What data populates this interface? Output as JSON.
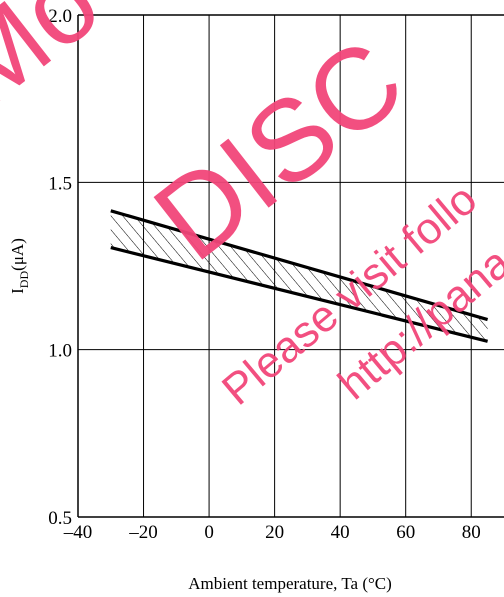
{
  "chart_data": {
    "type": "area",
    "title": "",
    "xlabel": "Ambient temperature, Ta (°C)",
    "ylabel_main": "I",
    "ylabel_sub": "DD",
    "ylabel_unit": "(μA)",
    "xlim": [
      -40,
      90
    ],
    "ylim": [
      0.5,
      2.0
    ],
    "x_ticks": [
      -40,
      -20,
      0,
      20,
      40,
      60,
      80
    ],
    "x_tick_labels": [
      "–40",
      "–20",
      "0",
      "20",
      "40",
      "60",
      "80"
    ],
    "y_ticks": [
      0.5,
      1.0,
      1.5,
      2.0
    ],
    "y_tick_labels": [
      "0.5",
      "1.0",
      "1.5",
      "2.0"
    ],
    "grid": true,
    "series": [
      {
        "x": [
          -30,
          85
        ],
        "y": [
          1.415,
          1.09
        ]
      },
      {
        "x": [
          -30,
          85
        ],
        "y": [
          1.305,
          1.025
        ]
      }
    ],
    "band_color": "#000000",
    "line_color": "#000000"
  },
  "watermark": {
    "texts": [
      "Mo",
      "DISC",
      "Please visit follo",
      "http://pana"
    ],
    "color": "#f2467a"
  }
}
